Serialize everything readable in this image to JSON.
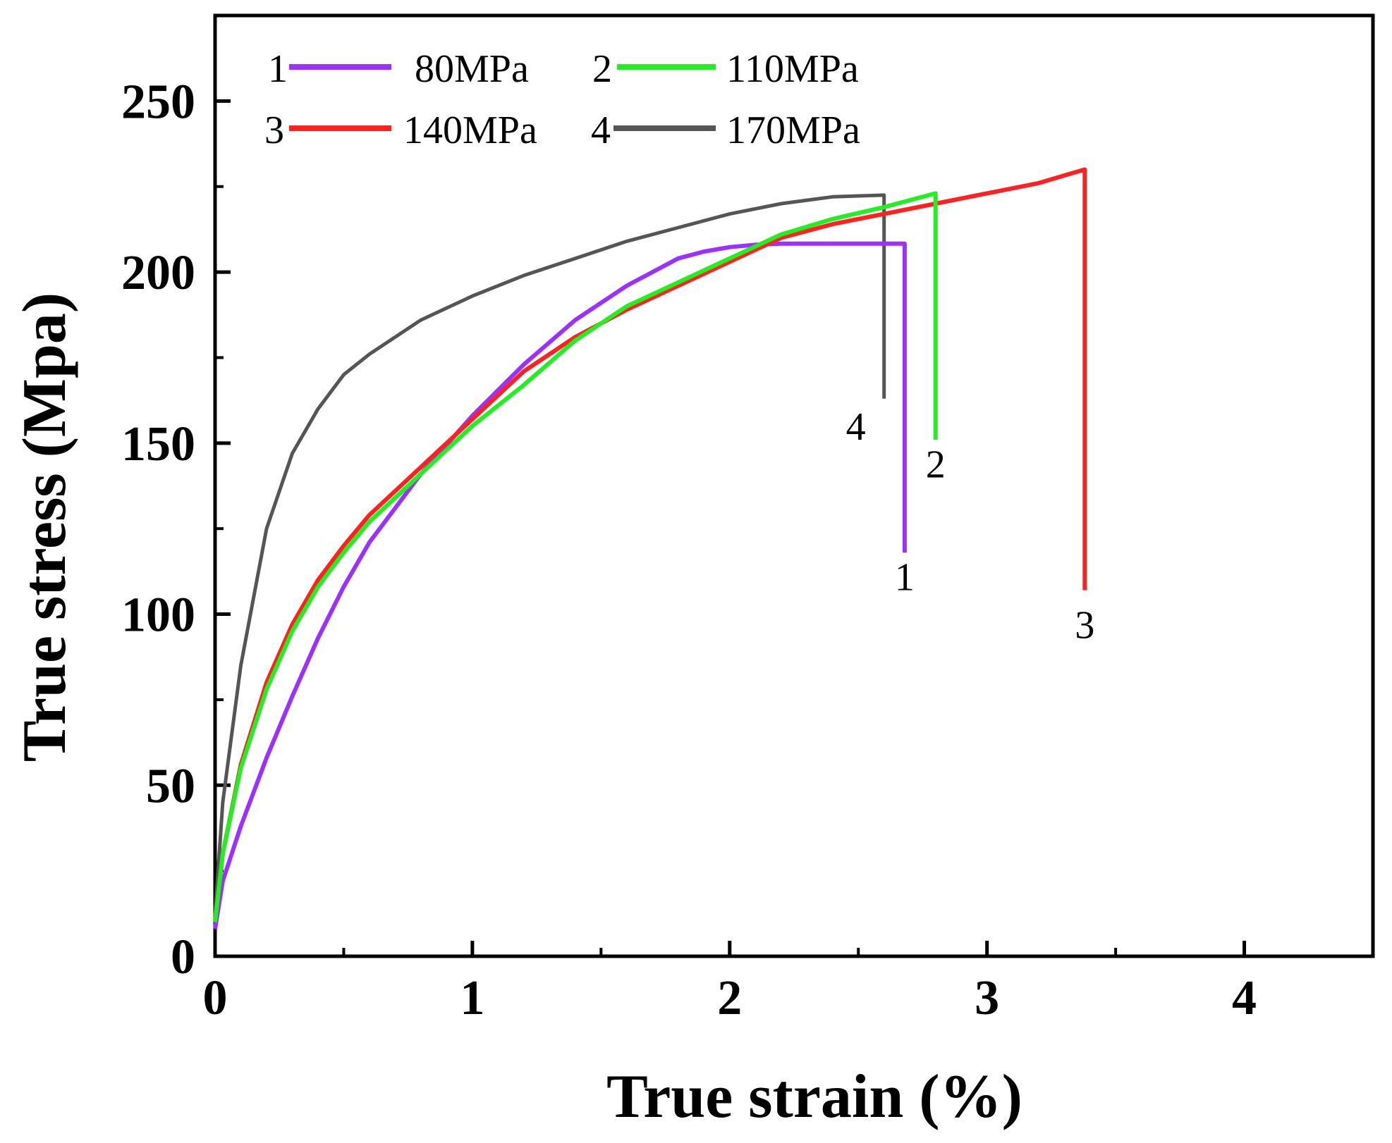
{
  "chart_data": {
    "type": "line",
    "title": "",
    "xlabel": "True strain (%)",
    "ylabel": "True stress (Mpa)",
    "xlim": [
      0,
      4.5
    ],
    "ylim": [
      0,
      275
    ],
    "x_ticks": [
      "0",
      "1",
      "2",
      "3",
      "4"
    ],
    "x_tick_values": [
      0,
      1,
      2,
      3,
      4
    ],
    "x_minor_tick_values": [
      0.5,
      1.5,
      2.5,
      3.5,
      4.5
    ],
    "y_ticks": [
      "0",
      "50",
      "100",
      "150",
      "200",
      "250"
    ],
    "y_tick_values": [
      0,
      50,
      100,
      150,
      200,
      250
    ],
    "y_minor_tick_values": [
      25,
      75,
      125,
      175,
      225
    ],
    "grid": false,
    "legend_position": "top-left",
    "series": [
      {
        "name": "80MPa",
        "label": "1",
        "color": "#9b30ff",
        "points": [
          [
            0,
            8
          ],
          [
            0.03,
            22
          ],
          [
            0.1,
            38
          ],
          [
            0.2,
            58
          ],
          [
            0.3,
            76
          ],
          [
            0.4,
            93
          ],
          [
            0.5,
            108
          ],
          [
            0.6,
            121
          ],
          [
            0.8,
            141
          ],
          [
            1.0,
            158
          ],
          [
            1.2,
            173
          ],
          [
            1.4,
            186
          ],
          [
            1.6,
            196
          ],
          [
            1.8,
            204
          ],
          [
            1.9,
            206
          ],
          [
            2.0,
            207.3
          ],
          [
            2.1,
            208
          ],
          [
            2.2,
            208.3
          ],
          [
            2.3,
            208.3
          ]
        ],
        "end_x": 2.68,
        "end_y": 118
      },
      {
        "name": "110MPa",
        "label": "2",
        "color": "#22ee22",
        "points": [
          [
            0,
            10
          ],
          [
            0.03,
            30
          ],
          [
            0.1,
            55
          ],
          [
            0.2,
            78
          ],
          [
            0.3,
            95
          ],
          [
            0.4,
            108
          ],
          [
            0.5,
            118
          ],
          [
            0.6,
            127
          ],
          [
            0.8,
            141
          ],
          [
            1.0,
            155
          ],
          [
            1.2,
            167
          ],
          [
            1.4,
            180
          ],
          [
            1.6,
            190
          ],
          [
            1.8,
            197
          ],
          [
            2.0,
            204
          ],
          [
            2.2,
            211
          ],
          [
            2.4,
            215.5
          ],
          [
            2.6,
            219
          ],
          [
            2.75,
            222
          ],
          [
            2.8,
            223
          ]
        ],
        "end_x": 2.8,
        "end_y": 151
      },
      {
        "name": "140MPa",
        "label": "3",
        "color": "#ff2020",
        "points": [
          [
            0,
            10
          ],
          [
            0.03,
            30
          ],
          [
            0.1,
            56
          ],
          [
            0.2,
            80
          ],
          [
            0.3,
            97
          ],
          [
            0.4,
            110
          ],
          [
            0.5,
            120
          ],
          [
            0.6,
            129
          ],
          [
            0.8,
            143
          ],
          [
            1.0,
            157
          ],
          [
            1.2,
            171
          ],
          [
            1.4,
            181
          ],
          [
            1.6,
            189
          ],
          [
            1.8,
            196
          ],
          [
            2.0,
            203
          ],
          [
            2.2,
            210
          ],
          [
            2.4,
            214
          ],
          [
            2.6,
            217
          ],
          [
            2.8,
            220
          ],
          [
            3.0,
            223
          ],
          [
            3.2,
            226
          ],
          [
            3.38,
            230
          ]
        ],
        "end_x": 3.38,
        "end_y": 107
      },
      {
        "name": "170MPa",
        "label": "4",
        "color": "#555555",
        "points": [
          [
            0,
            12
          ],
          [
            0.03,
            45
          ],
          [
            0.1,
            85
          ],
          [
            0.2,
            125
          ],
          [
            0.3,
            147
          ],
          [
            0.4,
            160
          ],
          [
            0.5,
            170
          ],
          [
            0.6,
            176
          ],
          [
            0.8,
            186
          ],
          [
            1.0,
            193
          ],
          [
            1.2,
            199
          ],
          [
            1.4,
            204
          ],
          [
            1.6,
            209
          ],
          [
            1.8,
            213
          ],
          [
            2.0,
            217
          ],
          [
            2.2,
            220
          ],
          [
            2.4,
            222
          ],
          [
            2.6,
            222.5
          ]
        ],
        "end_x": 2.6,
        "end_y": 163
      }
    ],
    "end_labels": [
      {
        "text": "4",
        "x": 2.49,
        "y": 151
      },
      {
        "text": "2",
        "x": 2.8,
        "y": 140
      },
      {
        "text": "1",
        "x": 2.68,
        "y": 107
      },
      {
        "text": "3",
        "x": 3.38,
        "y": 93
      }
    ]
  },
  "legend": {
    "entries": [
      {
        "number": "1",
        "label": "80MPa",
        "color": "#9b30ff"
      },
      {
        "number": "2",
        "label": "110MPa",
        "color": "#22ee22"
      },
      {
        "number": "3",
        "label": "140MPa",
        "color": "#ff2020"
      },
      {
        "number": "4",
        "label": "170MPa",
        "color": "#555555"
      }
    ]
  }
}
